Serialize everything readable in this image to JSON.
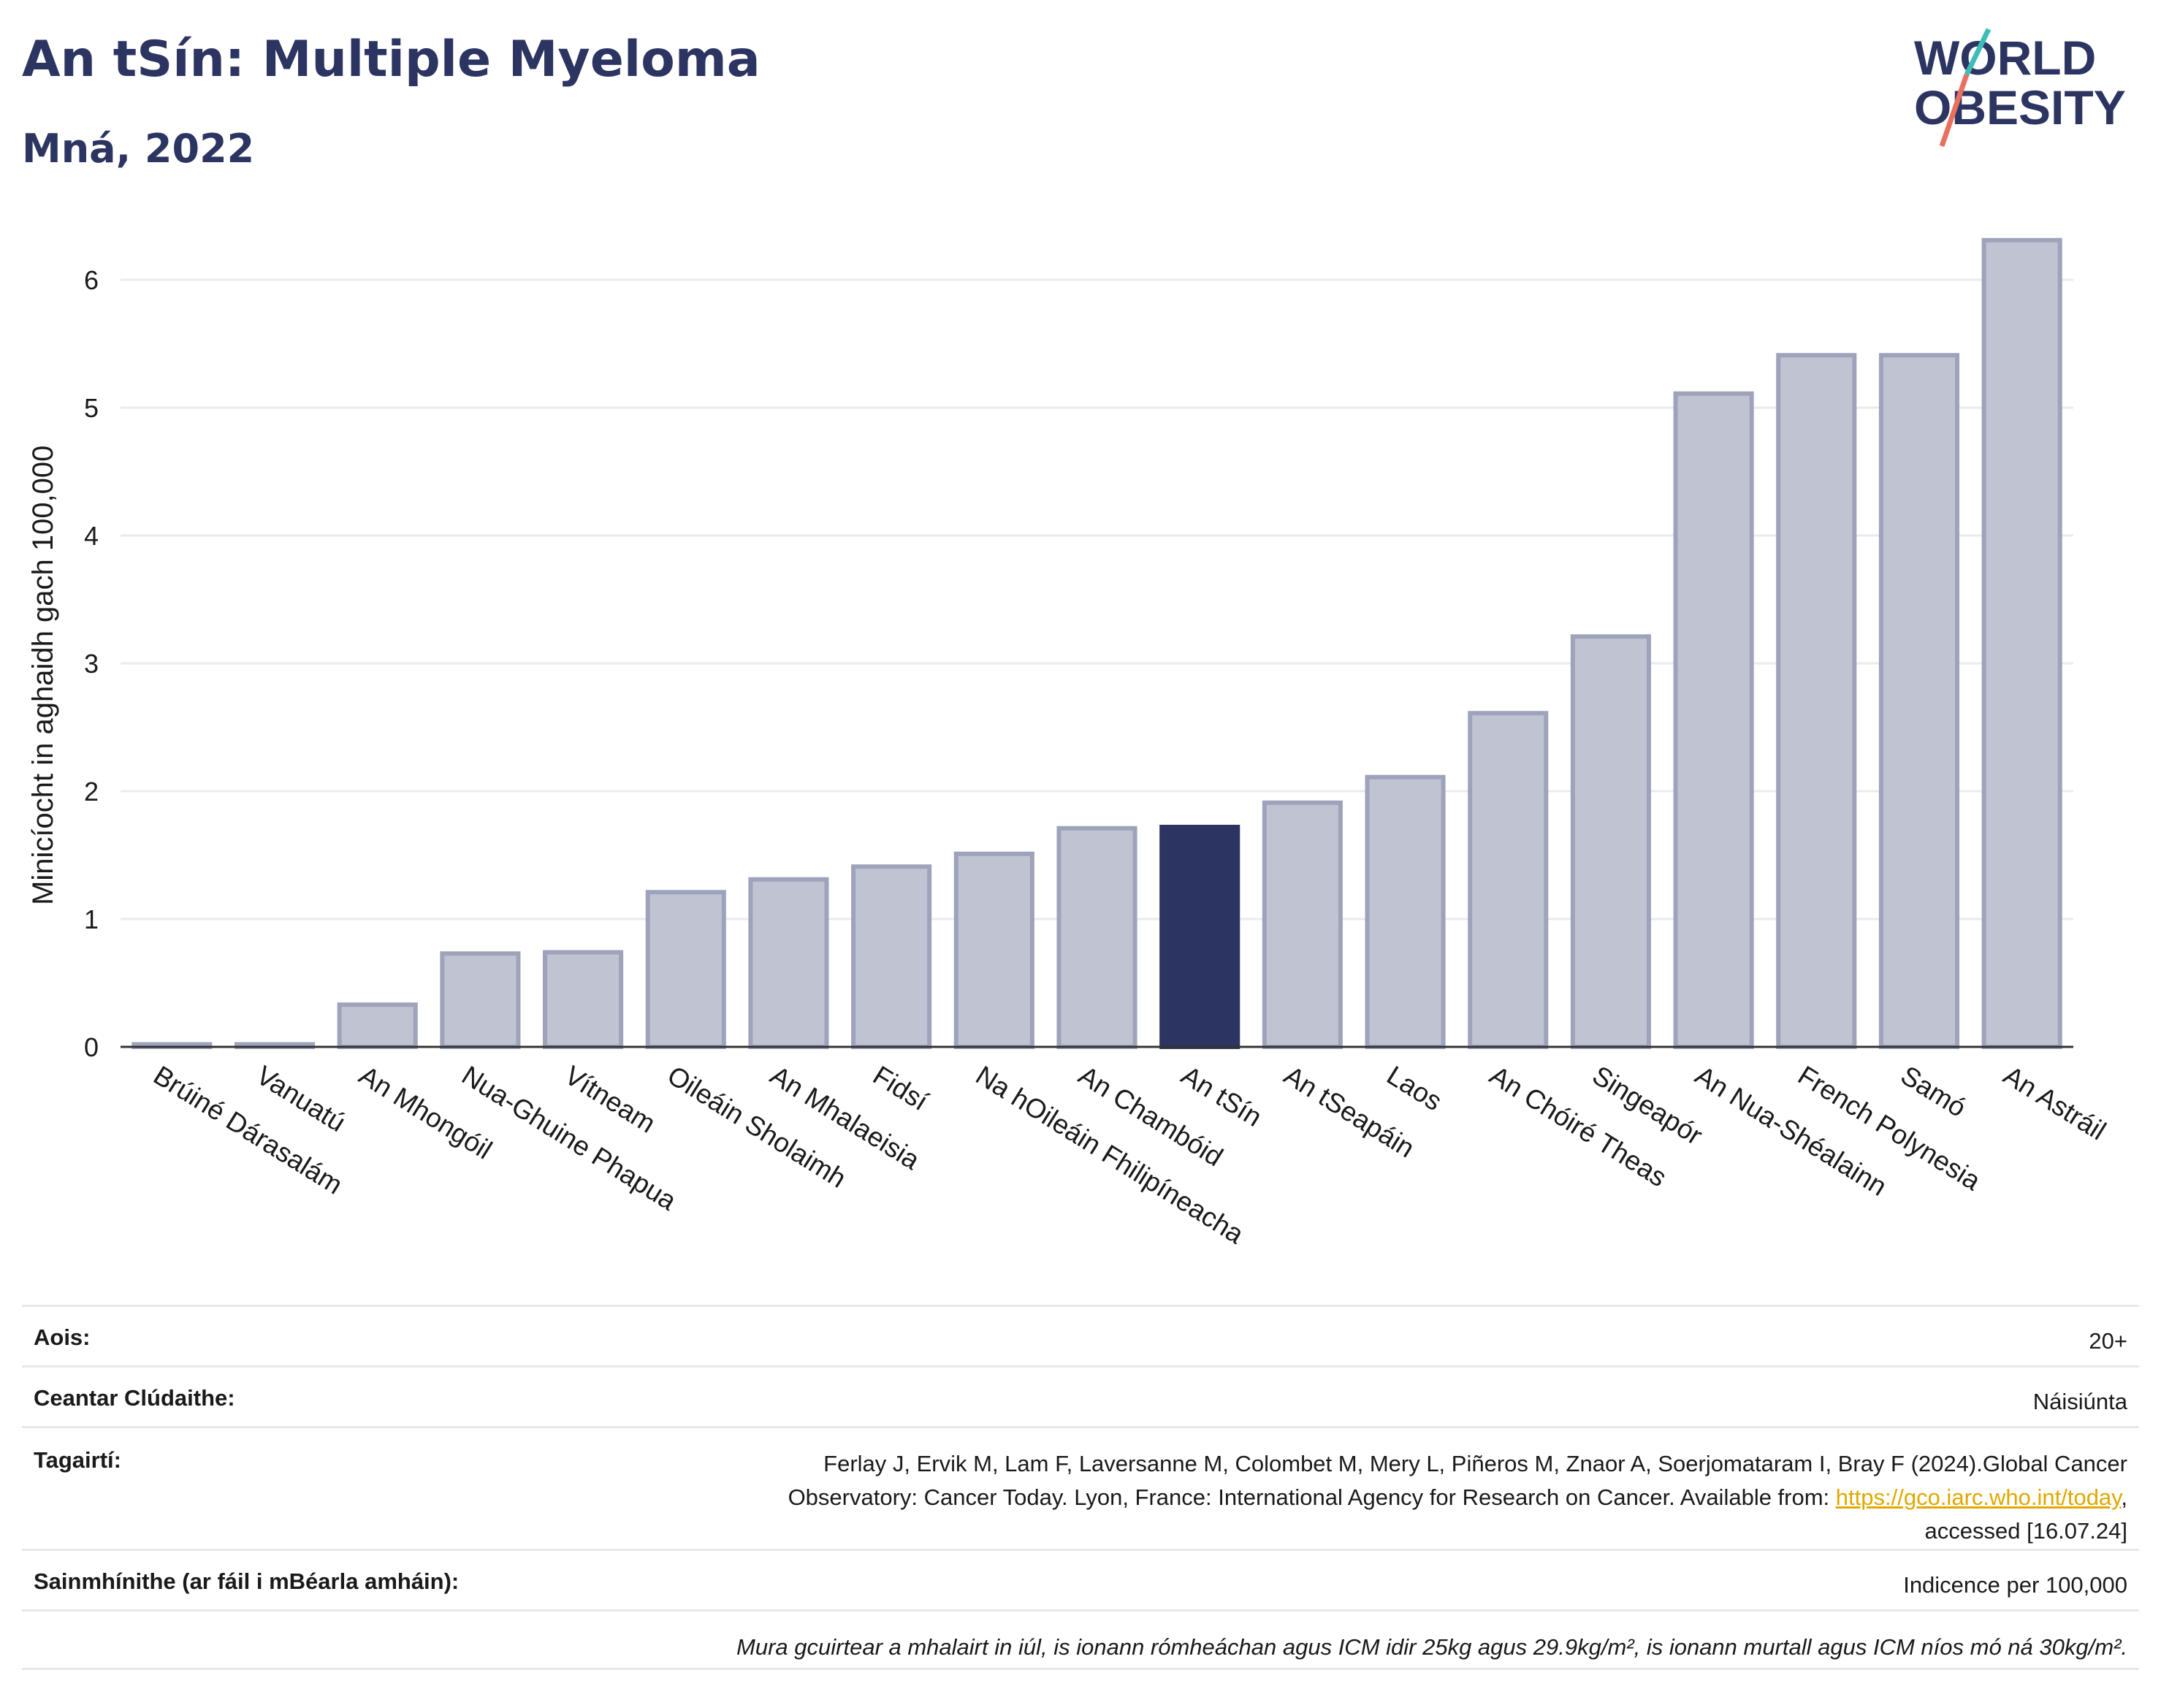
{
  "header": {
    "title": "An tSín: Multiple Myeloma",
    "subtitle": "Mná, 2022",
    "logo_line1": "WORLD",
    "logo_line2": "OBESITY"
  },
  "chart_data": {
    "type": "bar",
    "title": "An tSín: Multiple Myeloma",
    "subtitle": "Mná, 2022",
    "xlabel": "",
    "ylabel": "Minicíocht in aghaidh gach 100,000",
    "ylim": [
      0,
      6.5
    ],
    "yticks": [
      0,
      1,
      2,
      3,
      4,
      5,
      6
    ],
    "grid": true,
    "categories": [
      "Brúiné Dárasalám",
      "Vanuatú",
      "An Mhongóil",
      "Nua-Ghuine Phapua",
      "Vítneam",
      "Oileáin Sholaimh",
      "An Mhalaeisia",
      "Fidsí",
      "Na hOileáin Fhilipíneacha",
      "An Chambóid",
      "An tSín",
      "An tSeapáin",
      "Laos",
      "An Chóiré Theas",
      "Singeapór",
      "An Nua-Shéalainn",
      "French Polynesia",
      "Samó",
      "An Astráil"
    ],
    "values": [
      0.02,
      0.02,
      0.33,
      0.73,
      0.74,
      1.21,
      1.31,
      1.41,
      1.51,
      1.71,
      1.72,
      1.91,
      2.11,
      2.61,
      3.21,
      5.11,
      5.41,
      5.41,
      6.31
    ],
    "highlight": "An tSín",
    "colors": {
      "bar": "#c0c3d1",
      "bar_edge": "#9ea3bb",
      "highlight": "#2c3561",
      "grid": "#e9ebf0"
    }
  },
  "info": {
    "age_label": "Aois:",
    "age_value": "20+",
    "coverage_label": "Ceantar Clúdaithe:",
    "coverage_value": "Náisiúnta",
    "references_label": "Tagairtí:",
    "references_line1": "Ferlay J, Ervik M, Lam F, Laversanne M, Colombet M, Mery L, Piñeros M, Znaor A, Soerjomataram I, Bray F (2024).Global Cancer",
    "references_line2": "Observatory: Cancer Today. Lyon, France: International Agency for Research on Cancer. Available from: ",
    "references_link": "https://gco.iarc.who.int/today",
    "references_line2_end": ",",
    "references_line3": "accessed [16.07.24]",
    "definitions_label": "Sainmhínithe (ar fáil i mBéarla amháin):",
    "definitions_value": "Indicence per 100,000",
    "note": "Mura gcuirtear a mhalairt in iúl, is ionann rómheáchan agus ICM idir 25kg agus 29.9kg/m², is ionann murtall agus ICM níos mó ná 30kg/m²."
  }
}
